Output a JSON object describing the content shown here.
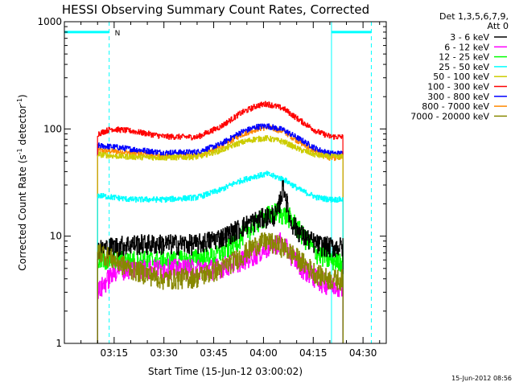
{
  "chart_data": {
    "type": "line",
    "title": "HESSI Observing Summary Count Rates, Corrected",
    "xlabel": "Start Time (15-Jun-12 03:00:02)",
    "ylabel_main": "Corrected Count Rate (s",
    "ylabel_exp1": "-1",
    "ylabel_mid": " detector",
    "ylabel_exp2": "-1",
    "ylabel_end": ")",
    "y_scale": "log",
    "ylim": [
      1,
      1000
    ],
    "xlim_minutes": [
      0,
      97
    ],
    "x_ticks": [
      {
        "label": "03:15",
        "minutes": 15
      },
      {
        "label": "03:30",
        "minutes": 30
      },
      {
        "label": "03:45",
        "minutes": 45
      },
      {
        "label": "04:00",
        "minutes": 60
      },
      {
        "label": "04:15",
        "minutes": 75
      },
      {
        "label": "04:30",
        "minutes": 90
      }
    ],
    "y_ticks": [
      {
        "label": "1",
        "value": 1
      },
      {
        "label": "10",
        "value": 10
      },
      {
        "label": "100",
        "value": 100
      },
      {
        "label": "1000",
        "value": 1000
      }
    ],
    "legend_header_1": "Det 1,3,5,6,7,9,",
    "legend_header_2": "Att 0",
    "legend_placement": "right",
    "flags": {
      "color": "#00ffff",
      "night_label": "N",
      "segments": [
        [
          0,
          13.5
        ],
        [
          80.5,
          92.5
        ]
      ],
      "level": 800
    },
    "markers": {
      "color": "#00ffff",
      "solid_minutes": [
        0,
        80.5
      ],
      "dashed_minutes": [
        13.5,
        92.5
      ]
    },
    "data_start_minute": 10,
    "data_end_minute": 84,
    "series": [
      {
        "name": "3 - 6 keV",
        "color": "#000000",
        "values": [
          [
            10,
            7.5
          ],
          [
            14,
            8
          ],
          [
            20,
            8.5
          ],
          [
            30,
            8.5
          ],
          [
            40,
            8.5
          ],
          [
            48,
            10
          ],
          [
            55,
            13
          ],
          [
            60,
            15
          ],
          [
            64,
            16
          ],
          [
            66,
            30
          ],
          [
            68,
            14
          ],
          [
            72,
            10
          ],
          [
            76,
            8.5
          ],
          [
            80,
            8
          ],
          [
            84,
            8
          ]
        ]
      },
      {
        "name": "6 - 12 keV",
        "color": "#ff00ff",
        "values": [
          [
            10,
            3
          ],
          [
            13,
            4
          ],
          [
            16,
            5
          ],
          [
            25,
            5
          ],
          [
            35,
            5
          ],
          [
            45,
            5
          ],
          [
            50,
            5.5
          ],
          [
            56,
            6.5
          ],
          [
            60,
            7.5
          ],
          [
            65,
            9
          ],
          [
            68,
            7
          ],
          [
            72,
            5
          ],
          [
            76,
            4
          ],
          [
            80,
            3.5
          ],
          [
            84,
            3.5
          ]
        ]
      },
      {
        "name": "12 - 25 keV",
        "color": "#00ff00",
        "values": [
          [
            10,
            6
          ],
          [
            15,
            6
          ],
          [
            25,
            6
          ],
          [
            35,
            6
          ],
          [
            45,
            6.5
          ],
          [
            50,
            8
          ],
          [
            56,
            12
          ],
          [
            60,
            15
          ],
          [
            64,
            17
          ],
          [
            68,
            15
          ],
          [
            72,
            10
          ],
          [
            76,
            7
          ],
          [
            80,
            6
          ],
          [
            84,
            6
          ]
        ]
      },
      {
        "name": "25 - 50 keV",
        "color": "#00ffff",
        "values": [
          [
            10,
            24
          ],
          [
            15,
            23
          ],
          [
            20,
            22
          ],
          [
            30,
            22
          ],
          [
            40,
            23
          ],
          [
            47,
            27
          ],
          [
            52,
            32
          ],
          [
            57,
            36
          ],
          [
            61,
            38
          ],
          [
            66,
            34
          ],
          [
            71,
            27
          ],
          [
            76,
            23
          ],
          [
            80,
            22
          ],
          [
            84,
            22
          ]
        ]
      },
      {
        "name": "50 - 100 keV",
        "color": "#cccc00",
        "values": [
          [
            10,
            58
          ],
          [
            15,
            56
          ],
          [
            20,
            55
          ],
          [
            30,
            54
          ],
          [
            40,
            55
          ],
          [
            47,
            63
          ],
          [
            52,
            73
          ],
          [
            57,
            80
          ],
          [
            61,
            82
          ],
          [
            66,
            76
          ],
          [
            71,
            64
          ],
          [
            76,
            57
          ],
          [
            80,
            55
          ],
          [
            84,
            55
          ]
        ]
      },
      {
        "name": "100 - 300 keV",
        "color": "#ff0000",
        "values": [
          [
            10,
            90
          ],
          [
            14,
            100
          ],
          [
            20,
            96
          ],
          [
            30,
            85
          ],
          [
            40,
            84
          ],
          [
            47,
            105
          ],
          [
            53,
            140
          ],
          [
            58,
            165
          ],
          [
            61,
            172
          ],
          [
            66,
            155
          ],
          [
            71,
            120
          ],
          [
            76,
            95
          ],
          [
            80,
            85
          ],
          [
            84,
            84
          ]
        ]
      },
      {
        "name": "300 - 800 keV",
        "color": "#0000ff",
        "values": [
          [
            10,
            70
          ],
          [
            15,
            68
          ],
          [
            20,
            65
          ],
          [
            30,
            60
          ],
          [
            40,
            61
          ],
          [
            47,
            72
          ],
          [
            53,
            93
          ],
          [
            58,
            105
          ],
          [
            61,
            107
          ],
          [
            66,
            98
          ],
          [
            71,
            80
          ],
          [
            76,
            65
          ],
          [
            80,
            59
          ],
          [
            84,
            59
          ]
        ]
      },
      {
        "name": "800 - 7000 keV",
        "color": "#ff8800",
        "values": [
          [
            10,
            63
          ],
          [
            15,
            62
          ],
          [
            20,
            60
          ],
          [
            30,
            55
          ],
          [
            40,
            56
          ],
          [
            47,
            68
          ],
          [
            53,
            88
          ],
          [
            58,
            100
          ],
          [
            61,
            104
          ],
          [
            66,
            95
          ],
          [
            71,
            75
          ],
          [
            76,
            60
          ],
          [
            80,
            54
          ],
          [
            84,
            54
          ]
        ]
      },
      {
        "name": "7000 - 20000 keV",
        "color": "#888800",
        "values": [
          [
            10,
            7.5
          ],
          [
            15,
            6
          ],
          [
            20,
            5
          ],
          [
            30,
            4
          ],
          [
            40,
            4.2
          ],
          [
            47,
            5
          ],
          [
            53,
            6.5
          ],
          [
            58,
            8.5
          ],
          [
            61,
            9
          ],
          [
            66,
            8
          ],
          [
            71,
            6
          ],
          [
            76,
            4.5
          ],
          [
            80,
            4
          ],
          [
            84,
            4
          ]
        ]
      }
    ]
  },
  "footer": {
    "timestamp": "15-Jun-2012 08:56"
  }
}
